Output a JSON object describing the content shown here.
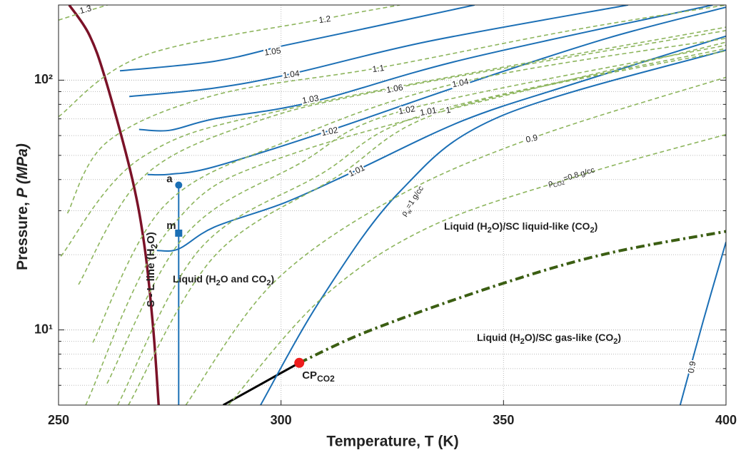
{
  "chart_data": {
    "type": "line",
    "x_label": "Temperature, T (K)",
    "y_label": [
      "Pressure, ",
      {
        "italic": "P (MPa)"
      }
    ],
    "xlim": [
      250,
      400
    ],
    "xticks": [
      250,
      300,
      350,
      400
    ],
    "ylim": [
      5,
      200
    ],
    "ylog": true,
    "yticks": [
      {
        "value": 10,
        "label": "10¹"
      },
      {
        "value": 100,
        "label": "10²"
      }
    ],
    "yminorticks": [
      5,
      6,
      7,
      8,
      9,
      20,
      30,
      40,
      50,
      60,
      70,
      80,
      90,
      200
    ],
    "grid": true,
    "series": [
      {
        "color": "#7b1228",
        "style": "solid",
        "x": [
          252.4,
          256.9,
          260.6,
          266.5,
          269.4,
          271.3,
          272.5
        ],
        "values": [
          200,
          152,
          100,
          40.7,
          21.1,
          10,
          5
        ]
      },
      {
        "color": "#000000",
        "style": "solid",
        "x": [
          287,
          304.1
        ],
        "values": [
          5,
          7.38
        ]
      },
      {
        "color": "#3b5e12",
        "style": "dashdot",
        "x": [
          304.1,
          320.3,
          349.1,
          373.2,
          400
        ],
        "values": [
          7.38,
          10,
          15.2,
          20.2,
          24.8
        ]
      },
      {
        "color": "#1b6fb5",
        "style": "solid",
        "x": [
          277,
          277
        ],
        "values": [
          38,
          5
        ]
      },
      {
        "name": "1.05",
        "color": "#1b6fb5",
        "style": "solid",
        "x": [
          263.8,
          285,
          301,
          320.3,
          343.5
        ],
        "values": [
          109,
          119,
          138,
          163,
          200
        ]
      },
      {
        "name": "1.04",
        "color": "#1b6fb5",
        "style": "solid",
        "x": [
          265.9,
          285,
          302.3,
          333.1,
          378
        ],
        "values": [
          86,
          93,
          106,
          143,
          200
        ]
      },
      {
        "name": "1.03",
        "color": "#1b6fb5",
        "style": "solid",
        "x": [
          268.1,
          275,
          285,
          306.6,
          341,
          397
        ],
        "values": [
          63.5,
          63,
          70,
          81.5,
          121,
          200
        ]
      },
      {
        "name": "1.02",
        "color": "#1b6fb5",
        "style": "solid",
        "x": [
          270,
          275,
          285,
          310.6,
          341,
          373.2,
          400
        ],
        "values": [
          41.9,
          42,
          45,
          62.6,
          96,
          147,
          196
        ]
      },
      {
        "name": "1.01",
        "color": "#1b6fb5",
        "style": "solid",
        "x": [
          272.1,
          277,
          285,
          301,
          317,
          341,
          365.2,
          400
        ],
        "values": [
          20.8,
          21.1,
          25.8,
          32.4,
          43.6,
          69,
          96,
          150
        ]
      },
      {
        "color": "#1b6fb5",
        "style": "solid",
        "x": [
          295.4,
          309,
          326.7,
          349.1,
          400
        ],
        "values": [
          5,
          13.3,
          35.8,
          71.4,
          132
        ]
      },
      {
        "name": "0.9",
        "color": "#1b6fb5",
        "style": "solid",
        "x": [
          389.7,
          394.9,
          400
        ],
        "values": [
          5,
          10.9,
          22.5
        ]
      },
      {
        "name": "1.3",
        "color": "#8db55d",
        "style": "dashed",
        "x": [
          250,
          256,
          261
        ],
        "values": [
          174,
          188,
          200
        ]
      },
      {
        "name": "1.2",
        "color": "#8db55d",
        "style": "dashed",
        "x": [
          250,
          268.9,
          309.8,
          326.7
        ],
        "values": [
          71.4,
          125,
          176,
          200
        ]
      },
      {
        "name": "1.1",
        "color": "#8db55d",
        "style": "dashed",
        "x": [
          252,
          261,
          285,
          321.9,
          365,
          400
        ],
        "values": [
          29.3,
          56.7,
          87,
          112,
          158,
          200
        ]
      },
      {
        "color": "#8db55d",
        "style": "dashed",
        "x": [
          250.5,
          268.9,
          304.3,
          400
        ],
        "values": [
          19.7,
          49.3,
          78.6,
          163
        ]
      },
      {
        "name": "1.06",
        "color": "#8db55d",
        "style": "dashed",
        "x": [
          254.5,
          268.9,
          293,
          325.6,
          400
        ],
        "values": [
          15.2,
          40.8,
          66.9,
          93,
          158
        ]
      },
      {
        "color": "#8db55d",
        "style": "dashed",
        "x": [
          256.1,
          275.3,
          305.8,
          400
        ],
        "values": [
          5,
          25.8,
          53,
          142
        ]
      },
      {
        "name": "1.04",
        "color": "#8db55d",
        "style": "dashed",
        "x": [
          257.7,
          273.7,
          301,
          340.3,
          400
        ],
        "values": [
          8.9,
          31.3,
          56.7,
          98,
          147
        ]
      },
      {
        "name": "1.02",
        "color": "#8db55d",
        "style": "dashed",
        "x": [
          260.9,
          278.6,
          304.3,
          328.3,
          400
        ],
        "values": [
          6.1,
          24.1,
          46.5,
          76.3,
          138
        ]
      },
      {
        "name": "1.01",
        "color": "#8db55d",
        "style": "dashed",
        "x": [
          263.3,
          281.8,
          309,
          333.1,
          400
        ],
        "values": [
          5,
          21.1,
          42.1,
          73.8,
          134
        ]
      },
      {
        "name": "1",
        "color": "#8db55d",
        "style": "dashed",
        "x": [
          265.7,
          285,
          312.3,
          337.6,
          400
        ],
        "values": [
          5,
          19.7,
          40.8,
          76.3,
          131
        ]
      },
      {
        "name": "0.9",
        "color": "#8db55d",
        "style": "dashed",
        "x": [
          278.6,
          297.9,
          325.1,
          356.4,
          400
        ],
        "values": [
          5,
          15.2,
          33.4,
          58.6,
          102.7
        ]
      },
      {
        "color": "#8db55d",
        "style": "dashed",
        "x": [
          288.2,
          309,
          333.1,
          366.8,
          400
        ],
        "values": [
          5,
          13.3,
          25.7,
          41.4,
          60.6
        ]
      }
    ],
    "markers": [
      {
        "x": 277,
        "y": 38,
        "shape": "circle",
        "color": "#1b6fb5",
        "label": [
          "a"
        ]
      },
      {
        "x": 277,
        "y": 24.4,
        "shape": "square",
        "color": "#1b6fb5",
        "label": [
          "m"
        ]
      },
      {
        "x": 304.1,
        "y": 7.38,
        "shape": "circle",
        "color": "#ee1c1c",
        "label": [
          "CP",
          {
            "sub": "CO2"
          }
        ]
      }
    ],
    "annotations": [
      [
        "S - L line (H",
        {
          "sub": "2"
        },
        "O)"
      ],
      [
        "Liquid (H",
        {
          "sub": "2"
        },
        "O and CO",
        {
          "sub": "2"
        },
        ")"
      ],
      [
        "Liquid (H",
        {
          "sub": "2"
        },
        "O)/SC liquid-like (CO",
        {
          "sub": "2"
        },
        ")"
      ],
      [
        "Liquid (H",
        {
          "sub": "2"
        },
        "O)/SC gas-like (CO",
        {
          "sub": "2"
        },
        ")"
      ],
      [
        "ρ",
        {
          "sub": "w"
        },
        "=1 g/cc"
      ],
      [
        "ρ",
        {
          "sub": "CO2"
        },
        "=0.8 g/cc"
      ]
    ]
  }
}
